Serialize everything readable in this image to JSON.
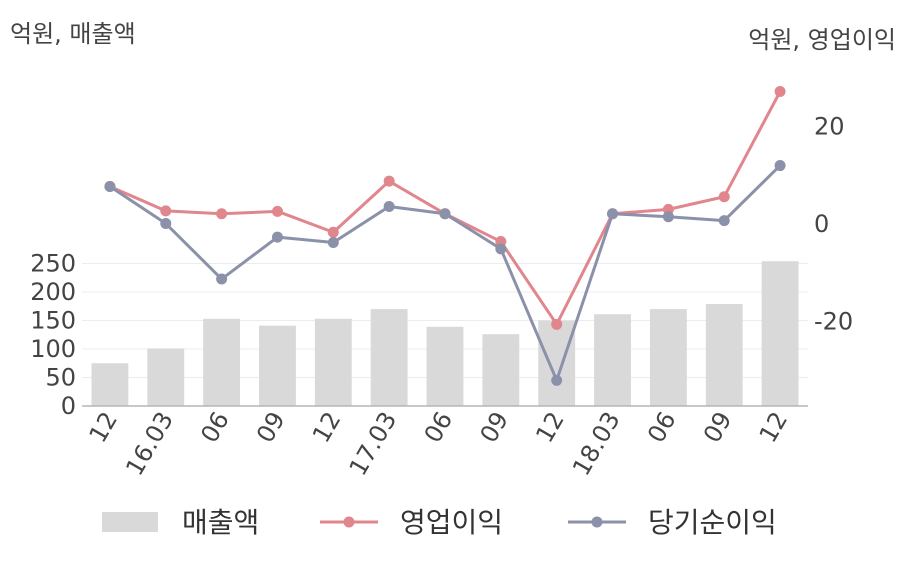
{
  "chart_data": {
    "type": "bar+line",
    "left_unit": "억원, 매출액",
    "right_unit": "억원, 영업이익",
    "categories": [
      "12",
      "16.03",
      "06",
      "09",
      "12",
      "17.03",
      "06",
      "09",
      "12",
      "18.03",
      "06",
      "09",
      "12"
    ],
    "series": [
      {
        "name": "매출액",
        "type": "bar",
        "axis": "left",
        "color": "#d9d9d9",
        "values": [
          75,
          101,
          153,
          141,
          153,
          170,
          139,
          126,
          150,
          161,
          170,
          179,
          254
        ]
      },
      {
        "name": "영업이익",
        "type": "line",
        "axis": "right",
        "color": "#e0868c",
        "values": [
          7.7,
          2.7,
          2.1,
          2.6,
          -1.7,
          8.8,
          2.1,
          -3.6,
          -20.6,
          2.1,
          3.0,
          5.6,
          27.2
        ]
      },
      {
        "name": "당기순이익",
        "type": "line",
        "axis": "right",
        "color": "#8c91aa",
        "values": [
          7.7,
          0.1,
          -11.3,
          -2.7,
          -3.8,
          3.6,
          2.1,
          -5.1,
          -32.1,
          2.1,
          1.5,
          0.7,
          12.0
        ]
      }
    ],
    "left_axis": {
      "ticks": [
        0,
        50,
        100,
        150,
        200,
        250
      ]
    },
    "right_axis": {
      "ticks": [
        -20,
        0,
        20
      ]
    },
    "grid": true,
    "legend": "bottom"
  }
}
